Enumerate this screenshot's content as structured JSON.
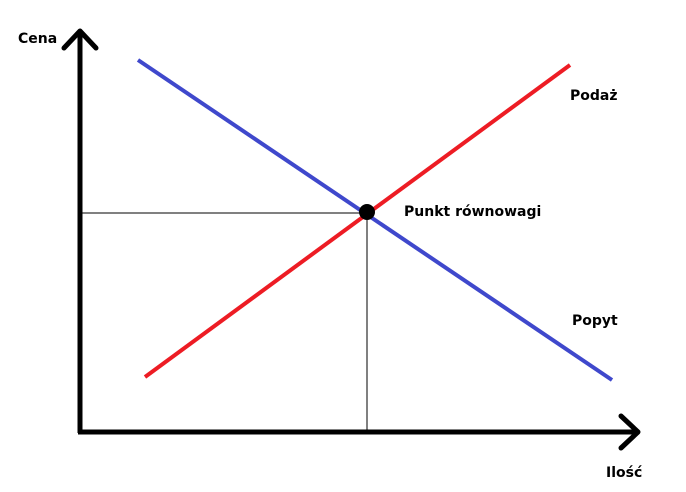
{
  "labels": {
    "y_axis": "Cena",
    "x_axis": "Ilość",
    "supply": "Podaż",
    "demand": "Popyt",
    "equilibrium": "Punkt równowagi"
  },
  "colors": {
    "supply": "#ed1c24",
    "demand": "#3f48cc",
    "axes": "#000000"
  }
}
